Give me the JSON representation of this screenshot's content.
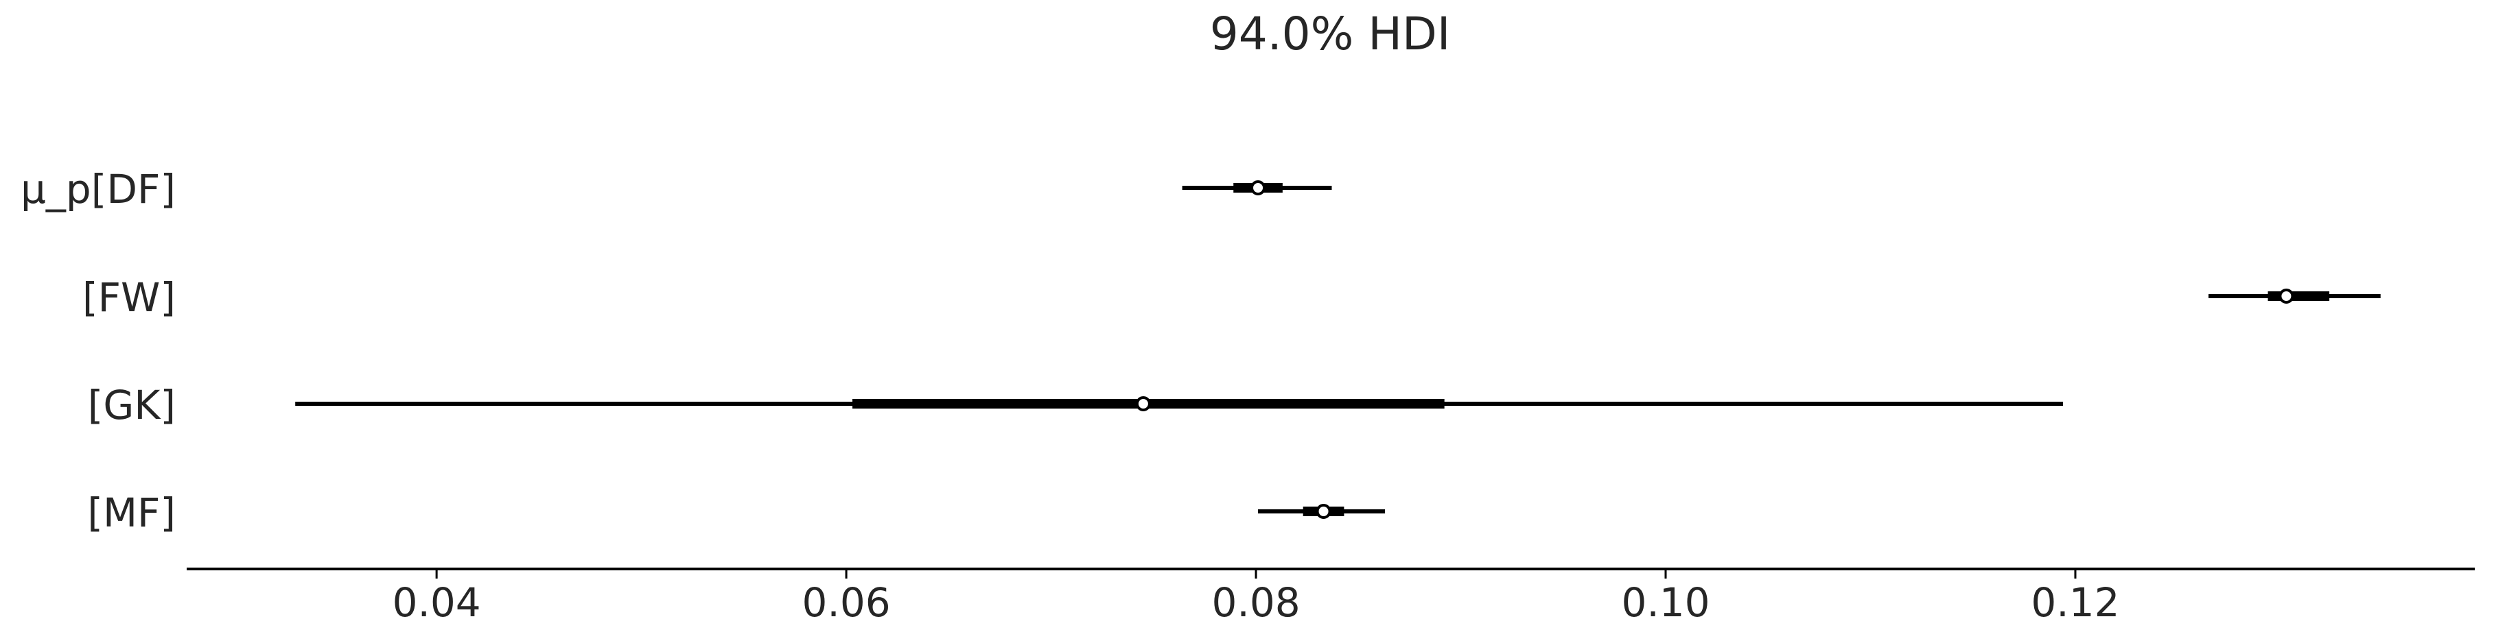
{
  "chart_data": {
    "type": "forest",
    "title": "94.0% HDI",
    "xlabel": "",
    "ylabel": "",
    "xlim": [
      0.0278,
      0.1395
    ],
    "grid": false,
    "legend": "none",
    "x_ticks": [
      0.04,
      0.06,
      0.08,
      0.1,
      0.12
    ],
    "x_tick_labels": [
      "0.04",
      "0.06",
      "0.08",
      "0.10",
      "0.12"
    ],
    "rows": [
      {
        "label": "μ_p[DF]",
        "hdi_low": 0.0764,
        "hdi_high": 0.0837,
        "iqr_low": 0.0789,
        "iqr_high": 0.0813,
        "median": 0.0801
      },
      {
        "label": "[FW]",
        "hdi_low": 0.1265,
        "hdi_high": 0.1349,
        "iqr_low": 0.1294,
        "iqr_high": 0.1324,
        "median": 0.1303
      },
      {
        "label": "[GK]",
        "hdi_low": 0.0331,
        "hdi_high": 0.1194,
        "iqr_low": 0.0603,
        "iqr_high": 0.0892,
        "median": 0.0745
      },
      {
        "label": "[MF]",
        "hdi_low": 0.0801,
        "hdi_high": 0.0863,
        "iqr_low": 0.0823,
        "iqr_high": 0.0843,
        "median": 0.0833
      }
    ],
    "colors": {
      "line": "#000000",
      "text": "#262626",
      "marker_fill": "#ffffff"
    }
  }
}
